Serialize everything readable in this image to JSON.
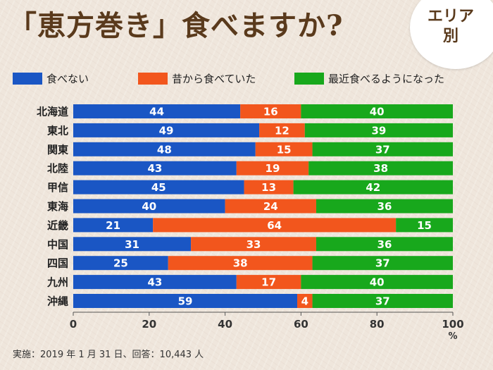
{
  "title": "「恵方巻き」食べますか?",
  "badge": {
    "line1": "エリア",
    "line2": "別"
  },
  "footnote": "実施：2019 年 1 月 31 日、回答：10,443 人",
  "colors": {
    "blue": "#1a56c4",
    "orange": "#f2561d",
    "green": "#18a81c"
  },
  "chart_data": {
    "type": "bar",
    "orientation": "horizontal",
    "stacked": true,
    "categories": [
      "北海道",
      "東北",
      "関東",
      "北陸",
      "甲信",
      "東海",
      "近畿",
      "中国",
      "四国",
      "九州",
      "沖縄"
    ],
    "series": [
      {
        "name": "食べない",
        "color": "#1a56c4",
        "values": [
          44,
          49,
          48,
          43,
          45,
          40,
          21,
          31,
          25,
          43,
          59
        ]
      },
      {
        "name": "昔から食べていた",
        "color": "#f2561d",
        "values": [
          16,
          12,
          15,
          19,
          13,
          24,
          64,
          33,
          38,
          17,
          4
        ]
      },
      {
        "name": "最近食べるようになった",
        "color": "#18a81c",
        "values": [
          40,
          39,
          37,
          38,
          42,
          36,
          15,
          36,
          37,
          40,
          37
        ]
      }
    ],
    "xlim": [
      0,
      100
    ],
    "xticks": [
      0,
      20,
      40,
      60,
      80,
      100
    ],
    "xunit": "%",
    "legend_position": "top",
    "grid": false
  }
}
